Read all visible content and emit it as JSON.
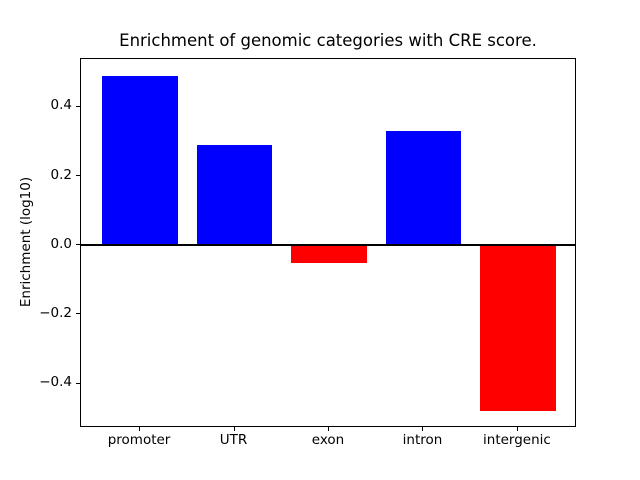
{
  "chart_data": {
    "type": "bar",
    "title": "Enrichment of genomic categories with CRE score.",
    "ylabel": "Enrichment (log10)",
    "xlabel": "",
    "categories": [
      "promoter",
      "UTR",
      "exon",
      "intron",
      "intergenic"
    ],
    "values": [
      0.49,
      0.29,
      -0.05,
      0.33,
      -0.48
    ],
    "bar_colors": [
      "#0000ff",
      "#0000ff",
      "#ff0000",
      "#0000ff",
      "#ff0000"
    ],
    "positive_color": "#0000ff",
    "negative_color": "#ff0000",
    "ytick_values": [
      0.4,
      0.2,
      0.0,
      -0.2,
      -0.4
    ],
    "ytick_labels": [
      "0.4",
      "0.2",
      "0.0",
      "−0.2",
      "−0.4"
    ],
    "ylim": [
      -0.5285,
      0.5385
    ],
    "xlim": [
      -0.625,
      4.625
    ],
    "bar_width_units": 0.8,
    "zero_line": true,
    "grid": false,
    "legend": null,
    "axis_color": "#000000",
    "background_color": "#ffffff"
  }
}
